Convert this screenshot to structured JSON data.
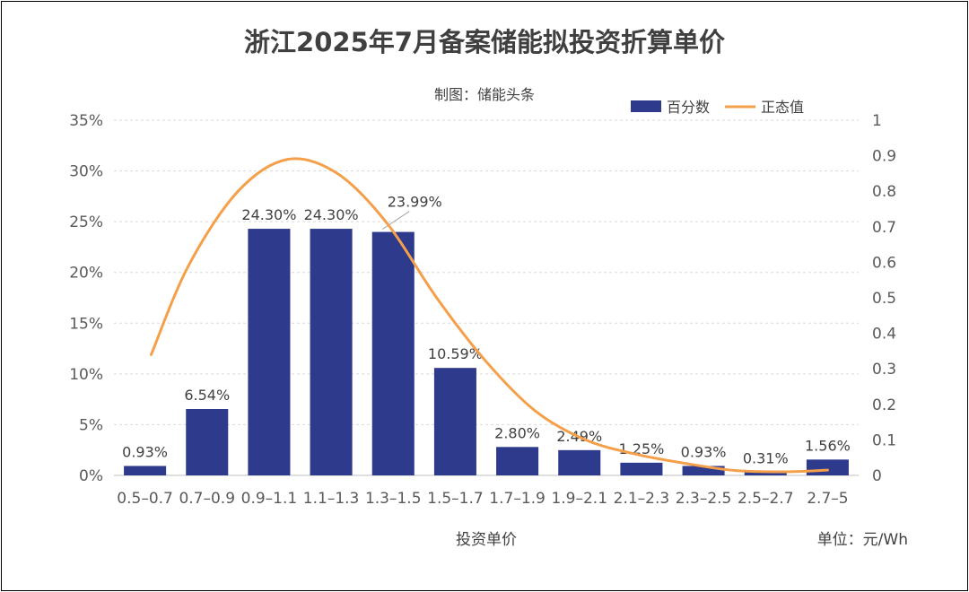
{
  "chart_data": {
    "type": "bar",
    "title": "浙江2025年7月备案储能拟投资折算单价",
    "subtitle": "制图：储能头条",
    "xlabel": "投资单价",
    "unit_label": "单位：元/Wh",
    "categories": [
      "0.5–0.7",
      "0.7–0.9",
      "0.9–1.1",
      "1.1–1.3",
      "1.3–1.5",
      "1.5–1.7",
      "1.7–1.9",
      "1.9–2.1",
      "2.1–2.3",
      "2.3–2.5",
      "2.5–2.7",
      "2.7–5"
    ],
    "y_left": {
      "min": 0,
      "max": 35,
      "ticks": [
        "0%",
        "5%",
        "10%",
        "15%",
        "20%",
        "25%",
        "30%",
        "35%"
      ]
    },
    "y_right": {
      "min": 0,
      "max": 1,
      "ticks": [
        "0",
        "0.1",
        "0.2",
        "0.3",
        "0.4",
        "0.5",
        "0.6",
        "0.7",
        "0.8",
        "0.9",
        "1"
      ]
    },
    "grid": true,
    "legend_position": "top-right",
    "series": [
      {
        "name": "百分数",
        "type": "bar",
        "axis": "left",
        "color": "#2E3A8C",
        "values": [
          0.93,
          6.54,
          24.3,
          24.3,
          23.99,
          10.59,
          2.8,
          2.49,
          1.25,
          0.93,
          0.31,
          1.56
        ],
        "labels": [
          "0.93%",
          "6.54%",
          "24.30%",
          "24.30%",
          "23.99%",
          "10.59%",
          "2.80%",
          "2.49%",
          "1.25%",
          "0.93%",
          "0.31%",
          "1.56%"
        ]
      },
      {
        "name": "正态值",
        "type": "line",
        "axis": "right",
        "color": "#F4A04A",
        "x": [
          0.6,
          1.2,
          2.0,
          2.8,
          3.6,
          4.4,
          5.2,
          6.0,
          6.8,
          7.6,
          8.4,
          9.2,
          10.0,
          10.8,
          11.5
        ],
        "values": [
          0.34,
          0.59,
          0.8,
          0.89,
          0.85,
          0.71,
          0.5,
          0.32,
          0.18,
          0.1,
          0.06,
          0.034,
          0.014,
          0.01,
          0.015
        ]
      }
    ]
  }
}
